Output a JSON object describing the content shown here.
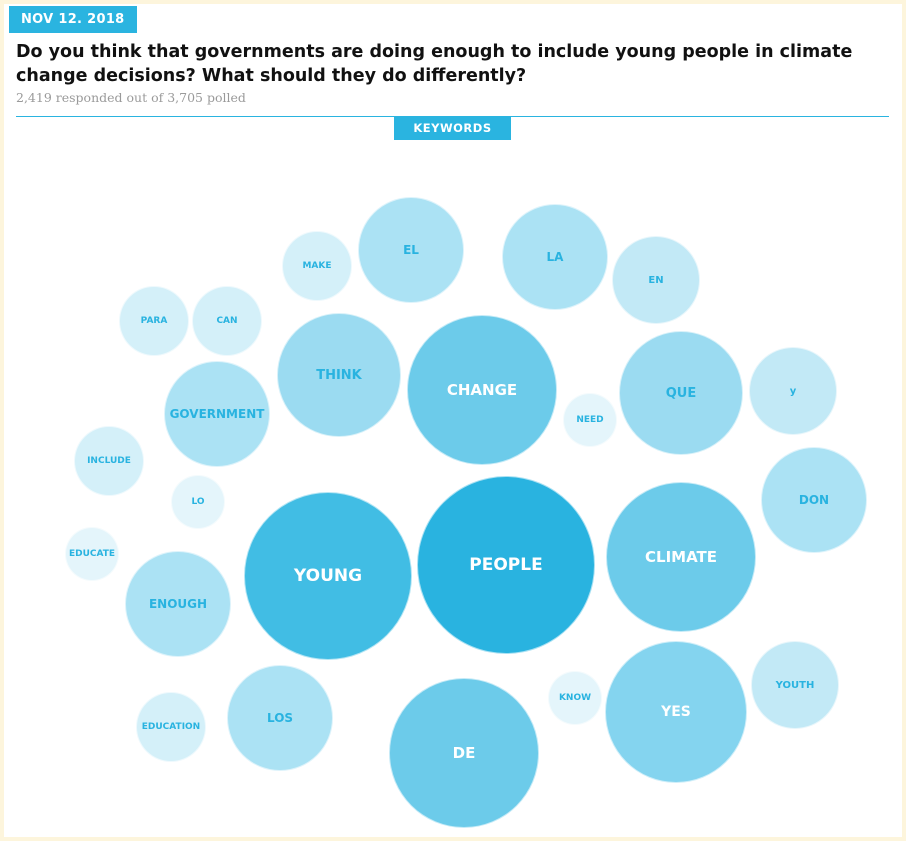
{
  "poll": {
    "date": "NOV 12. 2018",
    "question": "Do you think that governments are doing enough to include young people in climate change decisions? What should they do differently?",
    "responses": "2,419 responded out of 3,705 polled",
    "section_label": "KEYWORDS"
  },
  "keywords": [
    {
      "word": "PEOPLE"
    },
    {
      "word": "YOUNG"
    },
    {
      "word": "CLIMATE"
    },
    {
      "word": "CHANGE"
    },
    {
      "word": "DE"
    },
    {
      "word": "YES"
    },
    {
      "word": "QUE"
    },
    {
      "word": "THINK"
    },
    {
      "word": "GOVERNMENT"
    },
    {
      "word": "EL"
    },
    {
      "word": "LA"
    },
    {
      "word": "ENOUGH"
    },
    {
      "word": "LOS"
    },
    {
      "word": "DON"
    },
    {
      "word": "EN"
    },
    {
      "word": "YOUTH"
    },
    {
      "word": "y"
    },
    {
      "word": "PARA"
    },
    {
      "word": "CAN"
    },
    {
      "word": "MAKE"
    },
    {
      "word": "INCLUDE"
    },
    {
      "word": "EDUCATION"
    },
    {
      "word": "NEED"
    },
    {
      "word": "KNOW"
    },
    {
      "word": "LO"
    },
    {
      "word": "EDUCATE"
    }
  ],
  "colors": {
    "accent": "#2ab4e0",
    "page_background": "#fdf5dc"
  }
}
